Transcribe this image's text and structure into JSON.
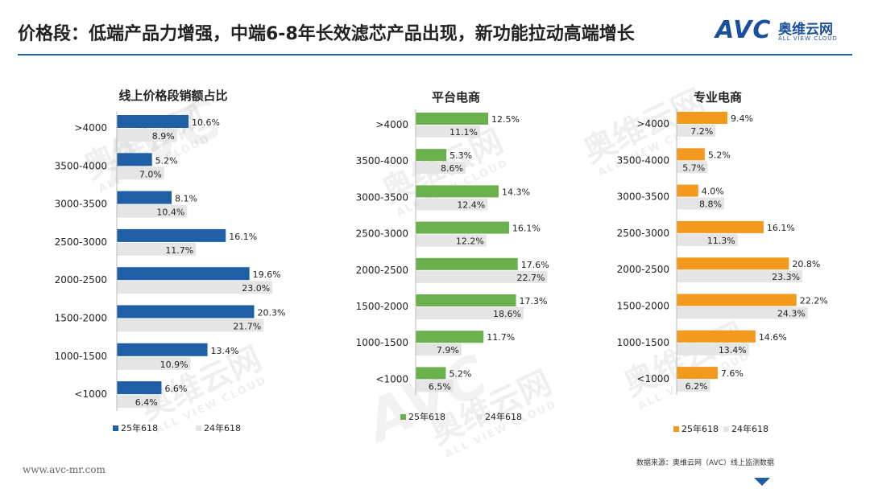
{
  "header": {
    "title": "价格段：低端产品力增强，中端6-8年长效滤芯产品出现，新功能拉动高端增长",
    "logo_text": "AVC",
    "logo_cn": "奥维云网",
    "logo_en": "ALL VIEW CLOUD"
  },
  "footer": {
    "url": "www.avc-mr.com",
    "source": "数据来源：奥维云网（AVC）线上监测数据"
  },
  "watermark": {
    "cn": "奥维云网",
    "en": "ALL VIEW CLOUD",
    "mark": "AVC"
  },
  "colors": {
    "series_2024": "#e5e5e5",
    "chart1_2025": "#1f5fa6",
    "chart2_2025": "#6ab04c",
    "chart3_2025": "#f39a1e",
    "accent": "#1f5fa6"
  },
  "chart_data": [
    {
      "type": "bar",
      "orientation": "horizontal",
      "title": "线上价格段销额占比",
      "categories": [
        ">4000",
        "3500-4000",
        "3000-3500",
        "2500-3000",
        "2000-2500",
        "1500-2000",
        "1000-1500",
        "<1000"
      ],
      "series": [
        {
          "name": "25年618",
          "values": [
            10.6,
            5.2,
            8.1,
            16.1,
            19.6,
            20.3,
            13.4,
            6.6
          ]
        },
        {
          "name": "24年618",
          "values": [
            8.9,
            7.0,
            10.4,
            11.7,
            23.0,
            21.7,
            10.9,
            6.4
          ]
        }
      ],
      "unit": "%",
      "xlim": [
        0,
        25
      ],
      "legend_position": "bottom"
    },
    {
      "type": "bar",
      "orientation": "horizontal",
      "title": "平台电商",
      "categories": [
        ">4000",
        "3500-4000",
        "3000-3500",
        "2500-3000",
        "2000-2500",
        "1500-2000",
        "1000-1500",
        "<1000"
      ],
      "series": [
        {
          "name": "25年618",
          "values": [
            12.5,
            5.3,
            14.3,
            16.1,
            17.6,
            17.3,
            11.7,
            5.2
          ]
        },
        {
          "name": "24年618",
          "values": [
            11.1,
            8.6,
            12.4,
            12.2,
            22.7,
            18.6,
            7.9,
            6.5
          ]
        }
      ],
      "unit": "%",
      "xlim": [
        0,
        25
      ],
      "legend_position": "bottom"
    },
    {
      "type": "bar",
      "orientation": "horizontal",
      "title": "专业电商",
      "categories": [
        ">4000",
        "3500-4000",
        "3000-3500",
        "2500-3000",
        "2000-2500",
        "1500-2000",
        "1000-1500",
        "<1000"
      ],
      "series": [
        {
          "name": "25年618",
          "values": [
            9.4,
            5.2,
            4.0,
            16.1,
            20.8,
            22.2,
            14.6,
            7.6
          ]
        },
        {
          "name": "24年618",
          "values": [
            7.2,
            5.7,
            8.8,
            11.3,
            23.3,
            24.3,
            13.4,
            6.2
          ]
        }
      ],
      "unit": "%",
      "xlim": [
        0,
        25
      ],
      "legend_position": "bottom"
    }
  ]
}
